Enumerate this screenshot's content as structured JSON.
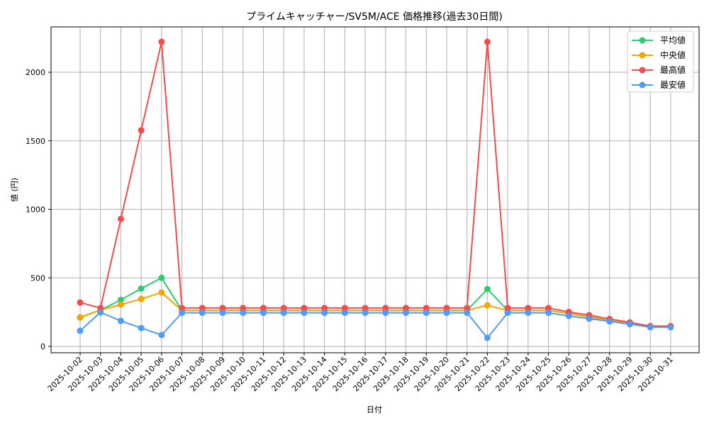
{
  "chart_data": {
    "type": "line",
    "title": "プライムキャッチャー/SV5M/ACE 価格推移(過去30日間)",
    "xlabel": "日付",
    "ylabel": "値 (円)",
    "ylim": [
      -75,
      2335
    ],
    "yticks": [
      0,
      500,
      1000,
      1500,
      2000
    ],
    "grid": true,
    "legend_position": "upper right",
    "categories": [
      "2025-10-02",
      "2025-10-03",
      "2025-10-04",
      "2025-10-05",
      "2025-10-06",
      "2025-10-07",
      "2025-10-08",
      "2025-10-09",
      "2025-10-10",
      "2025-10-11",
      "2025-10-12",
      "2025-10-13",
      "2025-10-14",
      "2025-10-15",
      "2025-10-16",
      "2025-10-17",
      "2025-10-18",
      "2025-10-19",
      "2025-10-20",
      "2025-10-21",
      "2025-10-22",
      "2025-10-23",
      "2025-10-24",
      "2025-10-25",
      "2025-10-26",
      "2025-10-27",
      "2025-10-28",
      "2025-10-29",
      "2025-10-30",
      "2025-10-31"
    ],
    "series": [
      {
        "name": "平均値",
        "color": "#2ecc71",
        "values": [
          210,
          265,
          340,
          422,
          500,
          262,
          262,
          262,
          262,
          262,
          262,
          262,
          262,
          262,
          262,
          262,
          262,
          262,
          262,
          262,
          418,
          262,
          262,
          262,
          240,
          215,
          190,
          168,
          143,
          143
        ]
      },
      {
        "name": "中央値",
        "color": "#f5a500",
        "values": [
          212,
          265,
          305,
          346,
          393,
          262,
          262,
          262,
          262,
          262,
          262,
          262,
          262,
          262,
          262,
          262,
          262,
          262,
          262,
          262,
          300,
          262,
          262,
          262,
          240,
          215,
          190,
          168,
          143,
          143
        ]
      },
      {
        "name": "最高値",
        "color": "#f44b4b",
        "values": [
          320,
          280,
          930,
          1576,
          2222,
          280,
          280,
          280,
          280,
          280,
          280,
          280,
          280,
          280,
          280,
          280,
          280,
          280,
          280,
          280,
          2222,
          280,
          280,
          280,
          251,
          228,
          200,
          175,
          148,
          148
        ]
      },
      {
        "name": "最安値",
        "color": "#4f9cf9",
        "values": [
          114,
          248,
          186,
          134,
          83,
          245,
          245,
          245,
          245,
          245,
          245,
          245,
          245,
          245,
          245,
          245,
          245,
          245,
          245,
          245,
          62,
          245,
          245,
          245,
          222,
          202,
          182,
          162,
          140,
          140
        ]
      }
    ]
  }
}
